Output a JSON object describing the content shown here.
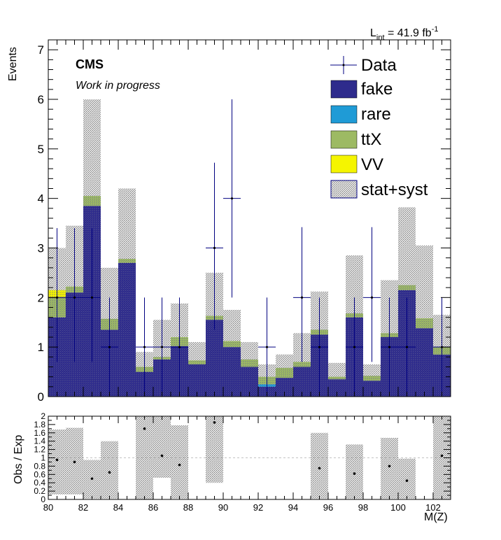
{
  "chart_data": [
    {
      "type": "bar",
      "stacked": true,
      "lumi_label": "L",
      "lumi_sub": "int",
      "lumi_value": " = 41.9 fb",
      "lumi_sup": "-1",
      "cms_label": "CMS",
      "cms_sublabel": "Work in progress",
      "ylabel": "Events",
      "xlim": [
        80,
        103
      ],
      "ylim": [
        0,
        7.2
      ],
      "yticks": [
        0,
        1,
        2,
        3,
        4,
        5,
        6,
        7
      ],
      "bin_edges": [
        80,
        81,
        82,
        83,
        84,
        85,
        86,
        87,
        88,
        89,
        90,
        91,
        92,
        93,
        94,
        95,
        96,
        97,
        98,
        99,
        100,
        101,
        102,
        103
      ],
      "legend": [
        "Data",
        "fake",
        "rare",
        "ttX",
        "VV",
        "stat+syst"
      ],
      "colors": {
        "fake": "#2e2b8c",
        "rare": "#1f9bd6",
        "ttX": "#9dba63",
        "VV": "#f5f500",
        "data": "#000080",
        "band": "#d3d3d3"
      },
      "series": [
        {
          "name": "fake",
          "values": [
            1.6,
            2.1,
            3.85,
            1.35,
            2.7,
            0.5,
            0.75,
            1.02,
            0.65,
            1.55,
            1.0,
            0.6,
            0.2,
            0.38,
            0.6,
            1.25,
            0.35,
            1.6,
            0.32,
            1.2,
            2.15,
            1.38,
            0.85
          ]
        },
        {
          "name": "rare",
          "values": [
            0.0,
            0.0,
            0.0,
            0.0,
            0.0,
            0.0,
            0.0,
            0.0,
            0.0,
            0.0,
            0.0,
            0.0,
            0.05,
            0.0,
            0.0,
            0.0,
            0.0,
            0.0,
            0.0,
            0.0,
            0.0,
            0.0,
            0.0
          ]
        },
        {
          "name": "ttX",
          "values": [
            0.4,
            0.12,
            0.2,
            0.22,
            0.08,
            0.1,
            0.05,
            0.18,
            0.08,
            0.08,
            0.12,
            0.15,
            0.15,
            0.2,
            0.1,
            0.1,
            0.05,
            0.08,
            0.1,
            0.08,
            0.1,
            0.2,
            0.15
          ]
        },
        {
          "name": "VV",
          "values": [
            0.15,
            0.0,
            0.0,
            0.0,
            0.0,
            0.0,
            0.0,
            0.0,
            0.0,
            0.0,
            0.0,
            0.0,
            0.0,
            0.0,
            0.0,
            0.0,
            0.0,
            0.0,
            0.0,
            0.0,
            0.0,
            0.0,
            0.0
          ]
        }
      ],
      "band_high": [
        3.0,
        3.45,
        6.0,
        2.6,
        4.2,
        0.9,
        1.55,
        1.88,
        1.1,
        2.5,
        1.75,
        1.1,
        0.65,
        0.85,
        1.28,
        2.12,
        0.68,
        2.85,
        0.65,
        2.35,
        3.82,
        3.05,
        1.65
      ],
      "data_points": [
        {
          "x": 80.5,
          "y": 2,
          "ylo": 0.7,
          "yhi": 3.4
        },
        {
          "x": 81.5,
          "y": 2,
          "ylo": 0.7,
          "yhi": 3.4
        },
        {
          "x": 82.5,
          "y": 2,
          "ylo": 0.7,
          "yhi": 3.4
        },
        {
          "x": 83.5,
          "y": 1,
          "ylo": 0.0,
          "yhi": 2.0
        },
        {
          "x": 85.5,
          "y": 1,
          "ylo": 0.0,
          "yhi": 2.0
        },
        {
          "x": 86.5,
          "y": 1,
          "ylo": 0.0,
          "yhi": 2.0
        },
        {
          "x": 87.5,
          "y": 1,
          "ylo": 0.0,
          "yhi": 2.0
        },
        {
          "x": 89.5,
          "y": 3,
          "ylo": 1.35,
          "yhi": 4.72
        },
        {
          "x": 90.5,
          "y": 4,
          "ylo": 2.0,
          "yhi": 6.0
        },
        {
          "x": 92.5,
          "y": 1,
          "ylo": 0.0,
          "yhi": 2.0
        },
        {
          "x": 94.5,
          "y": 2,
          "ylo": 0.7,
          "yhi": 3.42
        },
        {
          "x": 95.5,
          "y": 1,
          "ylo": 0.0,
          "yhi": 2.0
        },
        {
          "x": 97.5,
          "y": 1,
          "ylo": 0.0,
          "yhi": 2.0
        },
        {
          "x": 98.5,
          "y": 2,
          "ylo": 0.7,
          "yhi": 3.42
        },
        {
          "x": 99.5,
          "y": 1,
          "ylo": 0.0,
          "yhi": 2.0
        },
        {
          "x": 100.5,
          "y": 1,
          "ylo": 0.0,
          "yhi": 2.0
        },
        {
          "x": 102.5,
          "y": 1,
          "ylo": 0.0,
          "yhi": 2.0
        }
      ]
    },
    {
      "type": "scatter",
      "ylabel": "Obs / Exp",
      "xlabel": "M(Z)",
      "xlim": [
        80,
        103
      ],
      "ylim": [
        0,
        2
      ],
      "yticks": [
        "0",
        "0.2",
        "0.4",
        "0.6",
        "0.8",
        "1",
        "1.2",
        "1.4",
        "1.6",
        "1.8",
        "2"
      ],
      "xticks": [
        "80",
        "82",
        "84",
        "86",
        "88",
        "90",
        "92",
        "94",
        "96",
        "98",
        "100",
        "102"
      ],
      "ratio_bands": [
        {
          "x0": 80,
          "x1": 81,
          "lo": 0.12,
          "hi": 1.68
        },
        {
          "x0": 81,
          "x1": 82,
          "lo": 0.12,
          "hi": 1.72
        },
        {
          "x0": 82,
          "x1": 83,
          "lo": 0.02,
          "hi": 0.95
        },
        {
          "x0": 83,
          "x1": 84,
          "lo": 0.02,
          "hi": 1.4
        },
        {
          "x0": 85,
          "x1": 86,
          "lo": 0.0,
          "hi": 2.0
        },
        {
          "x0": 86,
          "x1": 87,
          "lo": 0.52,
          "hi": 2.0
        },
        {
          "x0": 87,
          "x1": 88,
          "lo": 0.02,
          "hi": 1.78
        },
        {
          "x0": 89,
          "x1": 90,
          "lo": 0.4,
          "hi": 2.0
        },
        {
          "x0": 95,
          "x1": 96,
          "lo": 0.02,
          "hi": 1.6
        },
        {
          "x0": 97,
          "x1": 98,
          "lo": 0.02,
          "hi": 1.32
        },
        {
          "x0": 99,
          "x1": 100,
          "lo": 0.02,
          "hi": 1.48
        },
        {
          "x0": 100,
          "x1": 101,
          "lo": 0.02,
          "hi": 0.98
        },
        {
          "x0": 102,
          "x1": 103,
          "lo": 0.0,
          "hi": 2.0
        }
      ],
      "ratio_points": [
        {
          "x": 80.5,
          "y": 0.95
        },
        {
          "x": 81.5,
          "y": 0.9
        },
        {
          "x": 82.5,
          "y": 0.5
        },
        {
          "x": 83.5,
          "y": 0.65
        },
        {
          "x": 85.5,
          "y": 1.7
        },
        {
          "x": 86.5,
          "y": 1.05
        },
        {
          "x": 87.5,
          "y": 0.83
        },
        {
          "x": 89.5,
          "y": 1.85
        },
        {
          "x": 95.5,
          "y": 0.75
        },
        {
          "x": 97.5,
          "y": 0.62
        },
        {
          "x": 99.5,
          "y": 0.8
        },
        {
          "x": 100.5,
          "y": 0.45
        },
        {
          "x": 102.5,
          "y": 1.05
        }
      ]
    }
  ]
}
